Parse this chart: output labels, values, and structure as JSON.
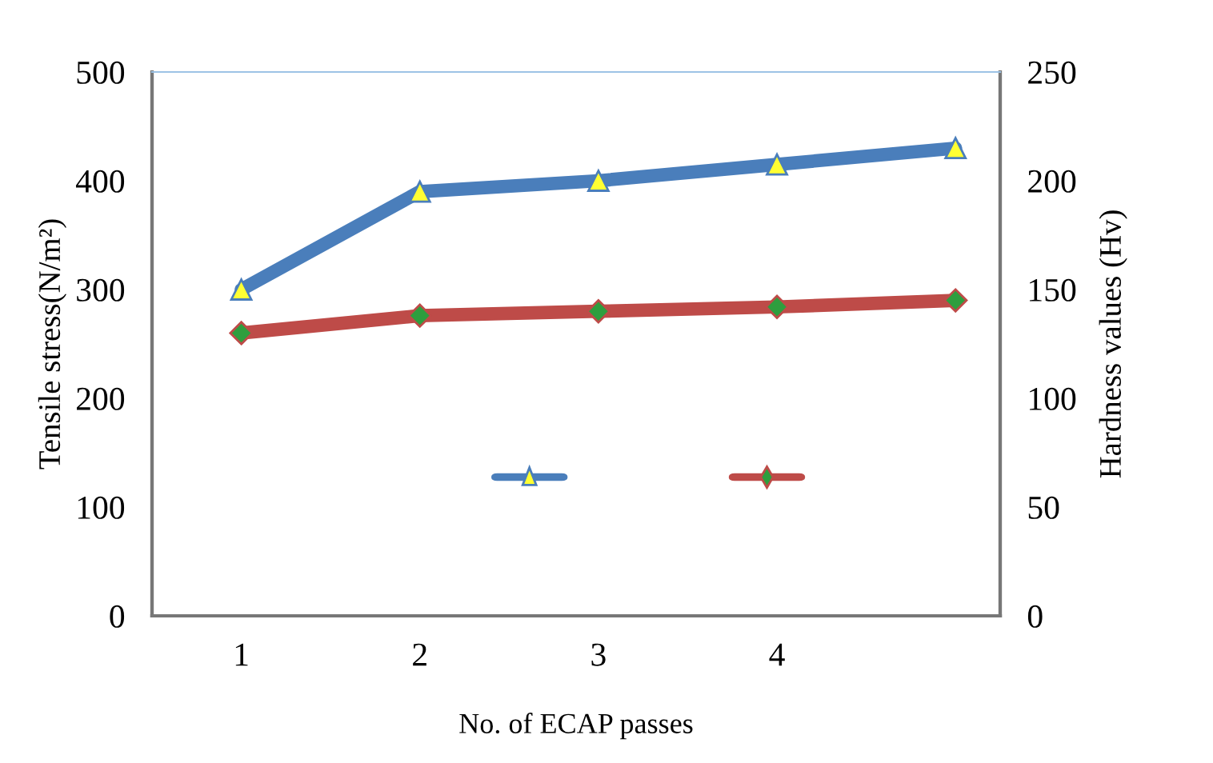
{
  "chart_data": {
    "type": "line",
    "xlabel": "No. of ECAP passes",
    "ylabel": "Tensile stress(N/m²)",
    "y2label": "Hardness values (Hv)",
    "x": [
      1,
      2,
      3,
      4,
      5
    ],
    "series": [
      {
        "color": "#4a7ebb",
        "values": [
          300,
          390,
          400,
          415,
          430
        ],
        "marker": "triangle"
      },
      {
        "color": "#be4b48",
        "values": [
          130,
          138,
          140,
          142,
          145
        ],
        "marker": "diamond",
        "axis": "y2"
      }
    ],
    "xlim": [
      0.5,
      5.25
    ],
    "xticks": [
      1,
      2,
      3,
      4
    ],
    "ylim": [
      0,
      500
    ],
    "yticks": [
      0,
      100,
      200,
      300,
      400,
      500
    ],
    "y2lim": [
      0,
      250
    ],
    "y2ticks": [
      0,
      50,
      100,
      150,
      200,
      250
    ],
    "grid": false,
    "line_style": "solid"
  }
}
